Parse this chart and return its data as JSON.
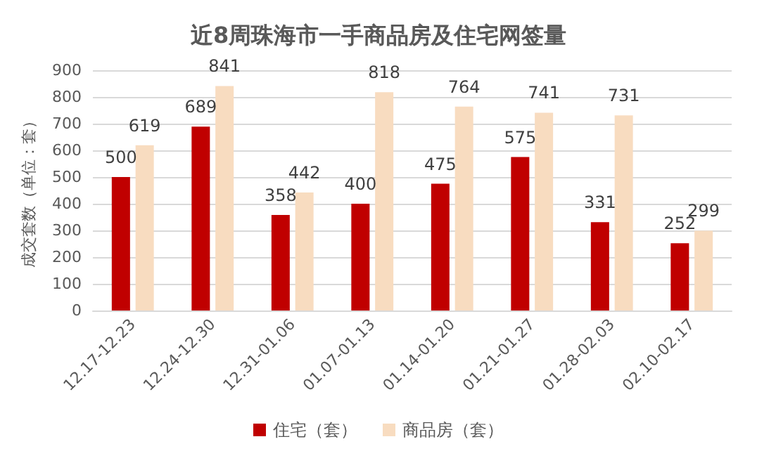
{
  "chart_data": {
    "type": "bar",
    "title": "近8周珠海市一手商品房及住宅网签量",
    "ylabel": "成交套数（单位：套）",
    "categories": [
      "12.17-12.23",
      "12.24-12.30",
      "12.31-01.06",
      "01.07-01.13",
      "01.14-01.20",
      "01.21-01.27",
      "01.28-02.03",
      "02.10-02.17"
    ],
    "series": [
      {
        "name": "住宅（套）",
        "color": "#c00000",
        "values": [
          500,
          689,
          358,
          400,
          475,
          575,
          331,
          252
        ]
      },
      {
        "name": "商品房（套）",
        "color": "#f8dcc0",
        "values": [
          619,
          841,
          442,
          818,
          764,
          741,
          731,
          299
        ]
      }
    ],
    "ylim": [
      0,
      900
    ],
    "yticks": [
      0,
      100,
      200,
      300,
      400,
      500,
      600,
      700,
      800,
      900
    ],
    "grid": "y",
    "legend": "bottom",
    "data_labels": true
  }
}
